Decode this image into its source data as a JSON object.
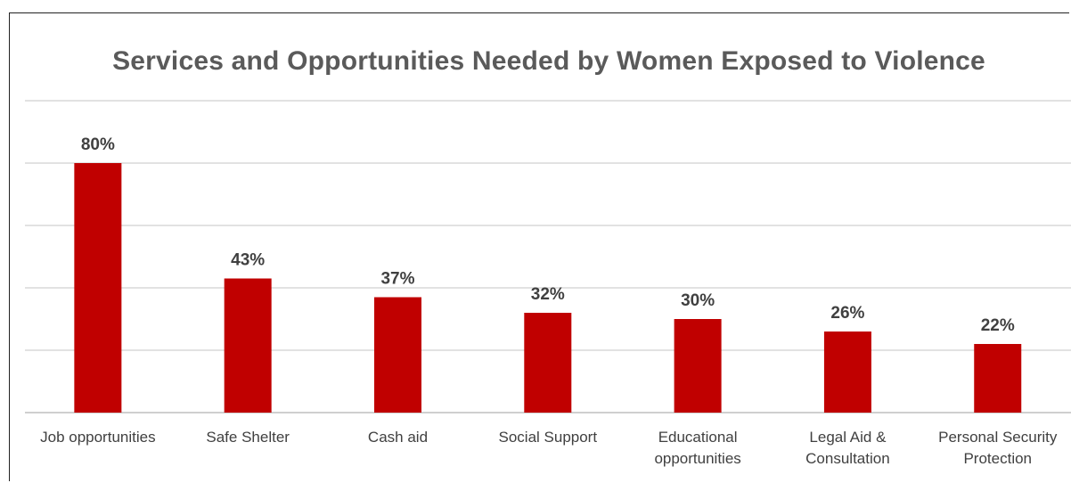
{
  "chart_data": {
    "type": "bar",
    "title": "Services and Opportunities Needed by Women Exposed to Violence",
    "categories": [
      [
        "Job opportunities"
      ],
      [
        "Safe Shelter"
      ],
      [
        "Cash aid"
      ],
      [
        "Social Support"
      ],
      [
        "Educational",
        "opportunities"
      ],
      [
        "Legal Aid &",
        "Consultation"
      ],
      [
        "Personal Security",
        "Protection"
      ]
    ],
    "values": [
      80,
      43,
      37,
      32,
      30,
      26,
      22
    ],
    "value_labels": [
      "80%",
      "43%",
      "37%",
      "32%",
      "30%",
      "26%",
      "22%"
    ],
    "ylim": [
      0,
      100
    ],
    "grid": true,
    "bar_color": "#c00000",
    "grid_color": "#d9d9d9",
    "text_color": "#404040"
  }
}
